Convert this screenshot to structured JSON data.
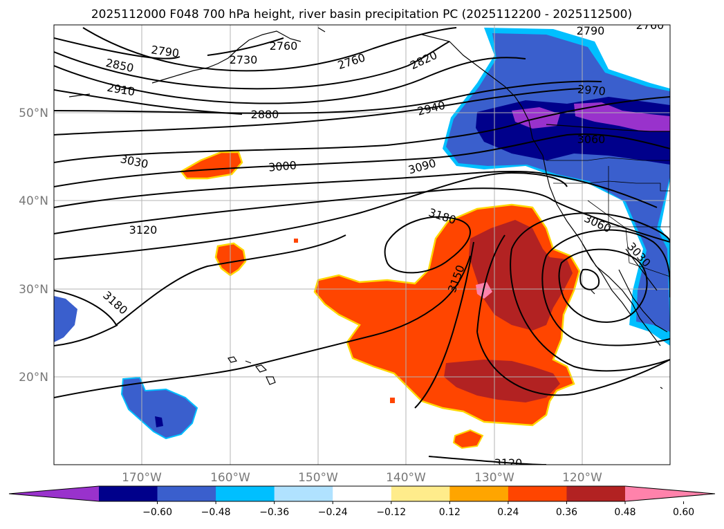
{
  "title": "2025112000 F048 700 hPa height, river basin precipitation PC (2025112200 - 2025112500)",
  "lat_labels": [
    "50°N",
    "40°N",
    "30°N",
    "20°N"
  ],
  "lon_labels": [
    "170°W",
    "160°W",
    "150°W",
    "140°W",
    "130°W",
    "120°W"
  ],
  "contour_labels": [
    "2790",
    "2730",
    "2760",
    "2760",
    "2820",
    "2790",
    "2760",
    "2850",
    "2910",
    "2880",
    "2940",
    "2970",
    "3060",
    "3030",
    "3000",
    "3090",
    "3180",
    "3120",
    "3060",
    "3030",
    "3150",
    "3180",
    "3120"
  ],
  "colorbar": {
    "tick_labels": [
      "−0.60",
      "−0.48",
      "−0.36",
      "−0.24",
      "−0.12",
      "0.12",
      "0.24",
      "0.36",
      "0.48",
      "0.60"
    ],
    "colors": [
      "#9932CC",
      "#00008B",
      "#3A5FCD",
      "#00BFFF",
      "#B0E2FF",
      "#FFFFFF",
      "#FFEC8B",
      "#FFA500",
      "#FF4500",
      "#B22222",
      "#FF82AB"
    ]
  },
  "map": {
    "projection": "equirectangular",
    "lon_range": [
      -180,
      -110
    ],
    "lat_range": [
      10,
      60
    ],
    "contour_interval": 30,
    "graticule": true
  }
}
